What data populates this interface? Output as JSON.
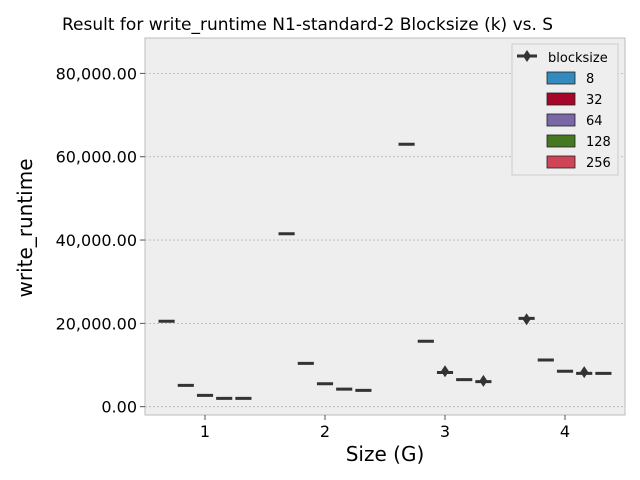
{
  "chart_data": {
    "type": "box",
    "title": "Result for write_runtime N1-standard-2 Blocksize (k) vs. S",
    "xlabel": "Size (G)",
    "ylabel": "write_runtime",
    "categories": [
      "1",
      "2",
      "3",
      "4"
    ],
    "yticks": [
      "0.00",
      "20,000.00",
      "40,000.00",
      "60,000.00",
      "80,000.00"
    ],
    "ylim": [
      -2000,
      88500
    ],
    "grid": true,
    "legend": {
      "title": "blocksize",
      "position": "top-right"
    },
    "series": [
      {
        "name": "8",
        "color": "#348abd",
        "values": [
          20500,
          41500,
          63000,
          21200
        ],
        "outliers": [
          [],
          [],
          [],
          [
            21000
          ]
        ]
      },
      {
        "name": "32",
        "color": "#a60628",
        "values": [
          5100,
          10400,
          15700,
          11200
        ],
        "outliers": [
          [],
          [],
          [],
          []
        ]
      },
      {
        "name": "64",
        "color": "#7a68a6",
        "values": [
          2700,
          5500,
          8200,
          8500
        ],
        "outliers": [
          [],
          [],
          [
            8500
          ],
          []
        ]
      },
      {
        "name": "128",
        "color": "#467821",
        "values": [
          2000,
          4200,
          6500,
          8000
        ],
        "outliers": [
          [],
          [],
          [],
          [
            8300
          ]
        ]
      },
      {
        "name": "256",
        "color": "#cf4457",
        "values": [
          2000,
          3900,
          6000,
          8000
        ],
        "outliers": [
          [],
          [],
          [
            6200
          ],
          []
        ]
      }
    ]
  }
}
